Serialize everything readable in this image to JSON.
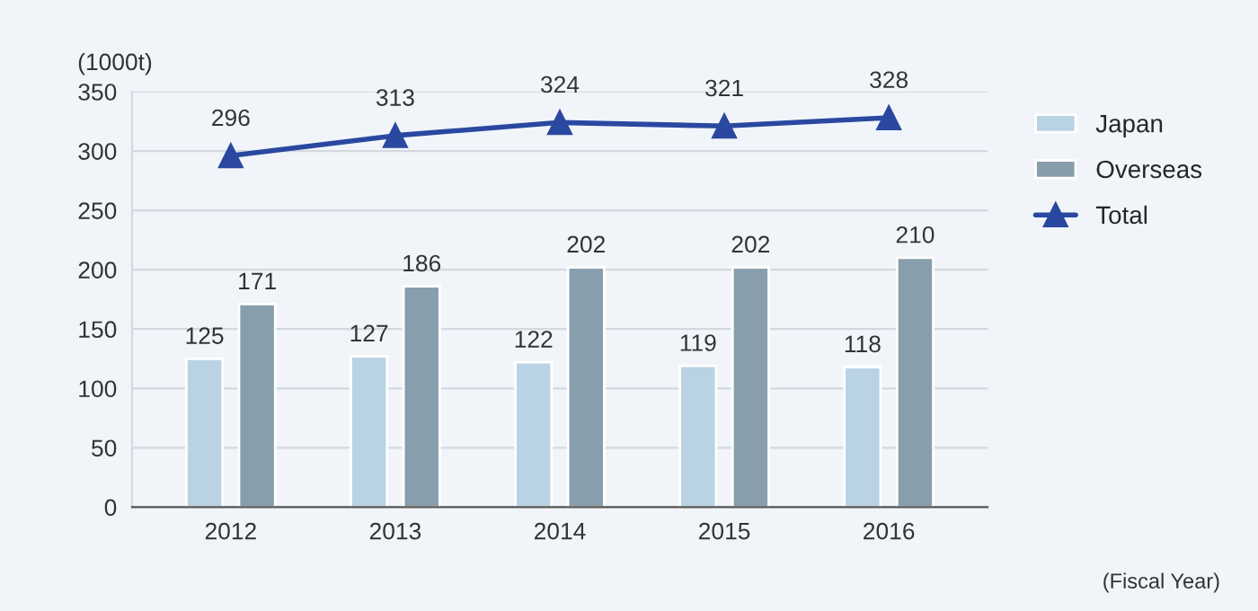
{
  "chart_data": {
    "type": "bar",
    "ylabel": "(1000t)",
    "categories": [
      "2012",
      "2013",
      "2014",
      "2015",
      "2016"
    ],
    "series": [
      {
        "name": "Japan",
        "color": "#b9d3e5",
        "values": [
          125,
          127,
          122,
          119,
          118
        ]
      },
      {
        "name": "Overseas",
        "color": "#899eac",
        "values": [
          171,
          186,
          202,
          202,
          210
        ]
      },
      {
        "name": "Total",
        "type": "line",
        "color": "#2a48a0",
        "marker": "triangle",
        "values": [
          296,
          313,
          324,
          321,
          328
        ]
      }
    ],
    "ylim": [
      0,
      350
    ],
    "yticks": [
      0,
      50,
      100,
      150,
      200,
      250,
      300,
      350
    ],
    "grid": "y",
    "legend": "top right",
    "data_labels": true,
    "annotations": [
      "(Fiscal Year)"
    ]
  }
}
